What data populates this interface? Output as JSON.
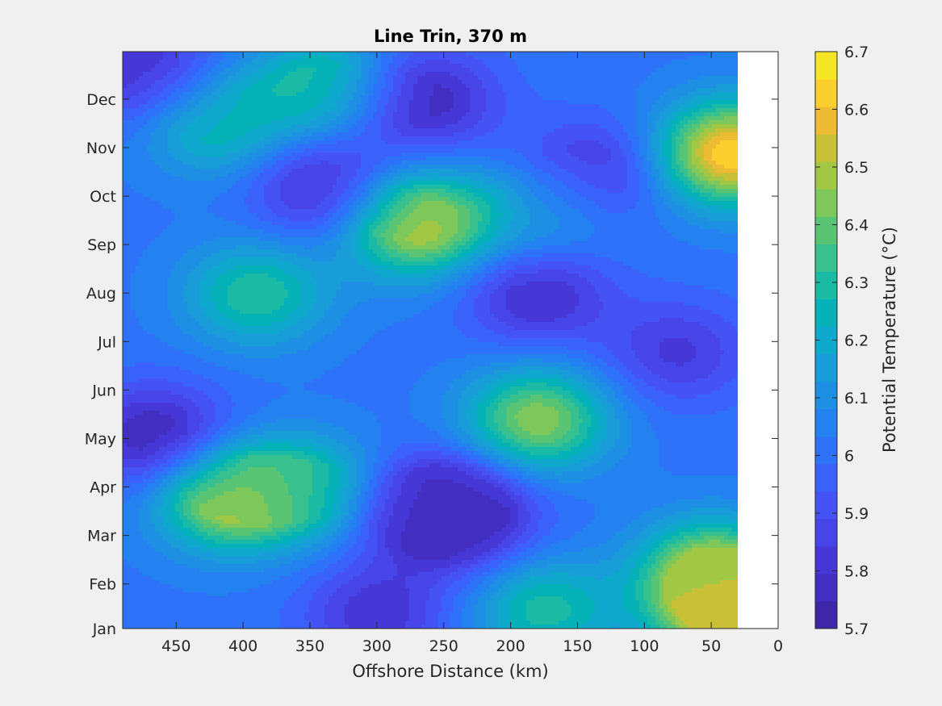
{
  "chart_data": {
    "type": "heatmap",
    "subtype": "filled-contour",
    "title": "Line Trin, 370 m",
    "xlabel": "Offshore Distance (km)",
    "ylabel": "",
    "colorbar_label": "Potential Temperature (°C)",
    "x_reversed": true,
    "xlim": [
      0,
      490
    ],
    "x_ticks": [
      "450",
      "400",
      "350",
      "300",
      "250",
      "200",
      "150",
      "100",
      "50",
      "0"
    ],
    "x_tick_values": [
      450,
      400,
      350,
      300,
      250,
      200,
      150,
      100,
      50,
      0
    ],
    "y_ticks": [
      "Jan",
      "Feb",
      "Mar",
      "Apr",
      "May",
      "Jun",
      "Jul",
      "Aug",
      "Sep",
      "Oct",
      "Nov",
      "Dec"
    ],
    "y_tick_values": [
      0,
      0.92,
      1.92,
      2.92,
      3.92,
      4.92,
      5.92,
      6.92,
      7.92,
      8.92,
      9.92,
      10.92
    ],
    "ylim": [
      0,
      11.9
    ],
    "data_xlim": [
      30,
      490
    ],
    "clim": [
      5.7,
      6.7
    ],
    "cbar_ticks": [
      "5.7",
      "5.8",
      "5.9",
      "6",
      "6.1",
      "6.2",
      "6.3",
      "6.4",
      "6.5",
      "6.6",
      "6.7"
    ],
    "cbar_tick_values": [
      5.7,
      5.8,
      5.9,
      6.0,
      6.1,
      6.2,
      6.3,
      6.4,
      6.5,
      6.6,
      6.7
    ],
    "levels": 20,
    "base_value": 6.02,
    "features": [
      {
        "x": 465,
        "y": 3.95,
        "value": 5.72
      },
      {
        "x": 475,
        "y": 11.5,
        "value": 5.78
      },
      {
        "x": 410,
        "y": 2.7,
        "value": 6.53
      },
      {
        "x": 390,
        "y": 6.9,
        "value": 6.32
      },
      {
        "x": 350,
        "y": 2.9,
        "value": 6.3
      },
      {
        "x": 340,
        "y": 9.1,
        "value": 5.77
      },
      {
        "x": 340,
        "y": 11.2,
        "value": 6.32
      },
      {
        "x": 270,
        "y": 8.35,
        "value": 6.55
      },
      {
        "x": 260,
        "y": 2.5,
        "value": 5.75
      },
      {
        "x": 235,
        "y": 2.3,
        "value": 5.76
      },
      {
        "x": 265,
        "y": 10.9,
        "value": 5.74
      },
      {
        "x": 180,
        "y": 4.3,
        "value": 6.46
      },
      {
        "x": 175,
        "y": 0.4,
        "value": 6.3
      },
      {
        "x": 180,
        "y": 6.9,
        "value": 5.77
      },
      {
        "x": 175,
        "y": 8.6,
        "value": 6.22
      },
      {
        "x": 140,
        "y": 9.4,
        "value": 5.78
      },
      {
        "x": 75,
        "y": 5.7,
        "value": 5.83
      },
      {
        "x": 50,
        "y": 1.2,
        "value": 6.46
      },
      {
        "x": 35,
        "y": 9.8,
        "value": 6.66
      },
      {
        "x": 35,
        "y": 0.3,
        "value": 6.58
      },
      {
        "x": 420,
        "y": 10.4,
        "value": 6.28
      },
      {
        "x": 300,
        "y": 0.3,
        "value": 5.8
      }
    ],
    "colormap": [
      "#3e26a8",
      "#432ec2",
      "#4538d7",
      "#4744e8",
      "#4552f4",
      "#3a62fb",
      "#2d72f9",
      "#2482f0",
      "#1d90e4",
      "#199dd9",
      "#0ea9cc",
      "#04b2b8",
      "#1bbaa4",
      "#38c18e",
      "#59c574",
      "#7ec75a",
      "#a2c744",
      "#c9c037",
      "#edbb34",
      "#fbcf2d",
      "#f5e625"
    ]
  }
}
